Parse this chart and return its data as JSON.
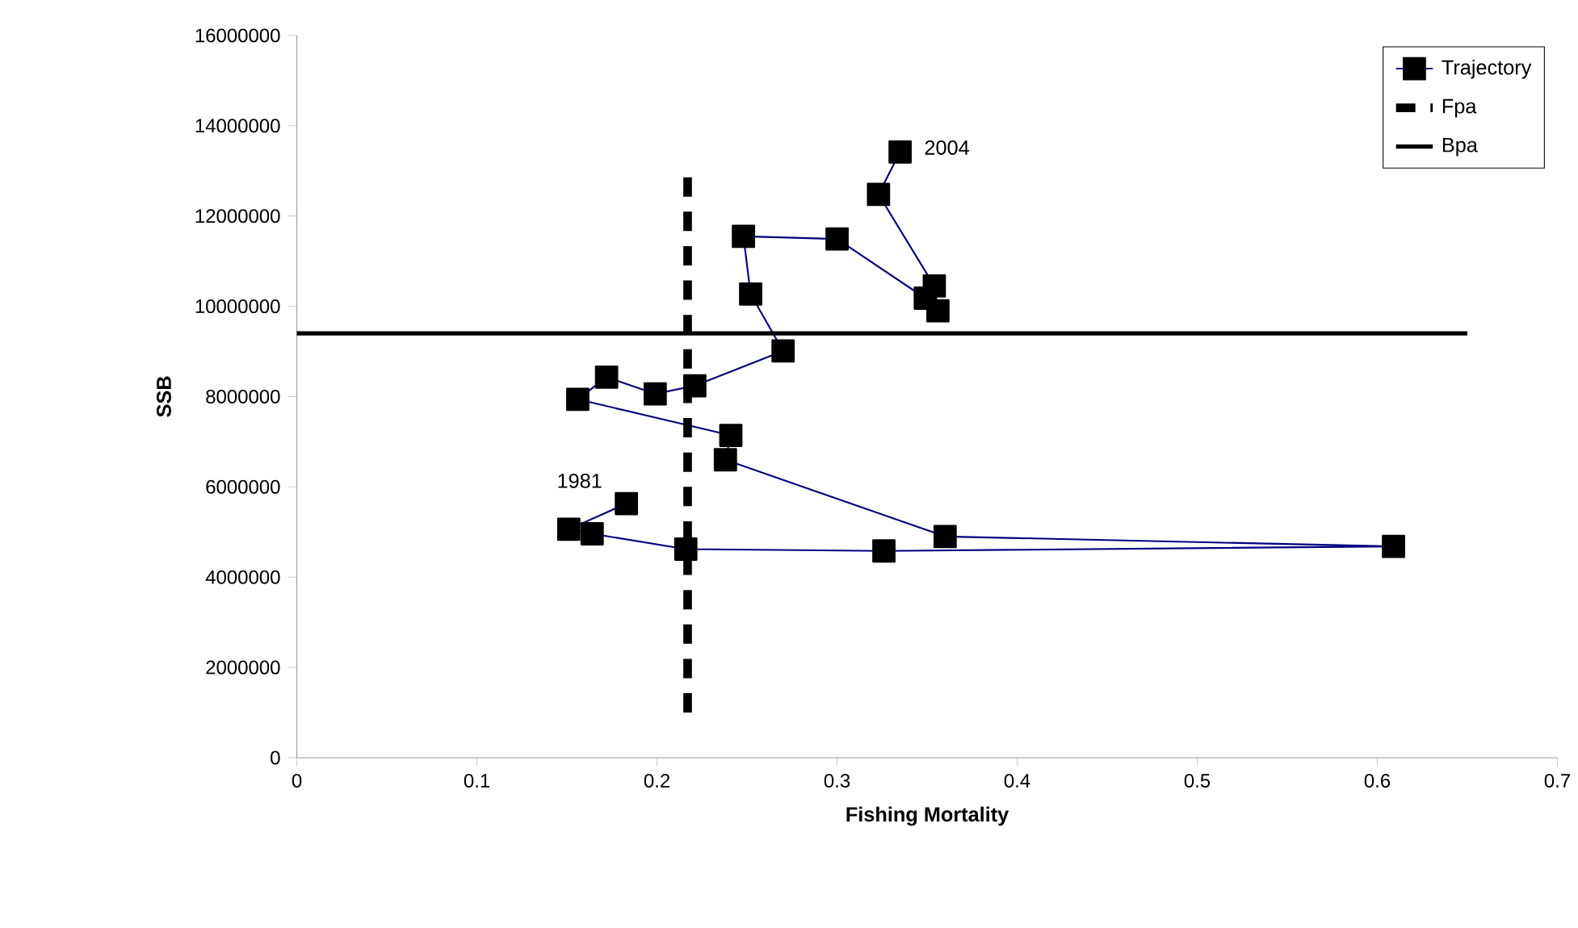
{
  "chart_data": {
    "type": "line",
    "xlabel": "Fishing Mortality",
    "ylabel": "SSB",
    "xlim": [
      0,
      0.7
    ],
    "xticks": [
      0,
      0.1,
      0.2,
      0.3,
      0.4,
      0.5,
      0.6,
      0.7
    ],
    "ylim": [
      0,
      16000000
    ],
    "yticks": [
      0,
      2000000,
      4000000,
      6000000,
      8000000,
      10000000,
      12000000,
      14000000,
      16000000
    ],
    "series": [
      {
        "name": "Trajectory",
        "color": "#000080",
        "marker": "square",
        "line_style": "solid",
        "x": [
          0.183,
          0.151,
          0.164,
          0.216,
          0.326,
          0.609,
          0.36,
          0.238,
          0.241,
          0.156,
          0.172,
          0.199,
          0.221,
          0.27,
          0.252,
          0.248,
          0.3,
          0.349,
          0.356,
          0.354,
          0.323,
          0.335
        ],
        "values": [
          5630000,
          5060000,
          4960000,
          4620000,
          4580000,
          4680000,
          4900000,
          6600000,
          7140000,
          7940000,
          8430000,
          8060000,
          8240000,
          9010000,
          10270000,
          11550000,
          11490000,
          10180000,
          9900000,
          10450000,
          12480000,
          13420000
        ]
      },
      {
        "name": "Fpa",
        "color": "#000000",
        "marker": "none",
        "line_style": "dashed",
        "x": [
          0.217,
          0.217
        ],
        "values": [
          1000000,
          13000000
        ]
      },
      {
        "name": "Bpa",
        "color": "#000000",
        "marker": "none",
        "line_style": "solid",
        "x": [
          0,
          0.65
        ],
        "values": [
          9400000,
          9400000
        ]
      }
    ],
    "annotations": [
      {
        "text": "1981",
        "x": 0.183,
        "y": 5630000
      },
      {
        "text": "2004",
        "x": 0.335,
        "y": 13420000
      }
    ],
    "legend": "top right",
    "grid": false
  }
}
